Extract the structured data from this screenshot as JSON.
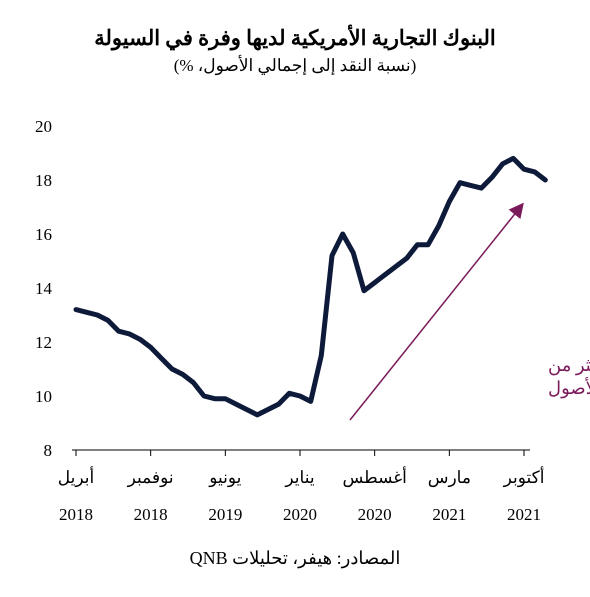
{
  "title": "البنوك التجارية الأمريكية لديها وفرة في السيولة",
  "subtitle": "(نسبة النقد إلى إجمالي الأصول، %)",
  "source": "المصادر: هيفر، تحليلات QNB",
  "chart_data": {
    "type": "line",
    "title": "البنوك التجارية الأمريكية لديها وفرة في السيولة",
    "subtitle": "(نسبة النقد إلى إجمالي الأصول، %)",
    "ylim": [
      8,
      20
    ],
    "yticks": [
      8,
      10,
      12,
      14,
      16,
      18,
      20
    ],
    "xlim": [
      0,
      42
    ],
    "x_ticks": [
      {
        "x": 0,
        "month": "أبريل",
        "year": "2018"
      },
      {
        "x": 7,
        "month": "نوفمبر",
        "year": "2018"
      },
      {
        "x": 14,
        "month": "يونيو",
        "year": "2019"
      },
      {
        "x": 21,
        "month": "يناير",
        "year": "2020"
      },
      {
        "x": 28,
        "month": "أغسطس",
        "year": "2020"
      },
      {
        "x": 35,
        "month": "مارس",
        "year": "2021"
      },
      {
        "x": 42,
        "month": "أكتوبر",
        "year": "2021"
      }
    ],
    "series": [
      {
        "color": "#0d1a3a",
        "x": [
          0,
          1,
          2,
          3,
          4,
          5,
          6,
          7,
          8,
          9,
          10,
          11,
          12,
          13,
          14,
          15,
          16,
          17,
          18,
          19,
          20,
          21,
          22,
          23,
          24,
          25,
          26,
          27,
          28,
          29,
          30,
          31,
          32,
          33,
          34,
          35,
          36,
          37,
          38,
          39,
          40,
          41,
          42,
          43,
          44
        ],
        "values": [
          13.2,
          13.1,
          13.0,
          12.8,
          12.4,
          12.3,
          12.1,
          11.8,
          11.4,
          11.0,
          10.8,
          10.5,
          10.0,
          9.9,
          9.9,
          9.7,
          9.5,
          9.3,
          9.5,
          9.7,
          10.1,
          10.0,
          9.8,
          11.5,
          15.2,
          16.0,
          15.3,
          13.9,
          14.2,
          14.5,
          14.8,
          15.1,
          15.6,
          15.6,
          16.3,
          17.2,
          17.9,
          17.8,
          17.7,
          18.1,
          18.6,
          18.8,
          18.4,
          18.3,
          18.0
        ]
      }
    ],
    "annotation": {
      "line1": "زيادة النقد أكثر من",
      "line2": "الأصول",
      "color": "#7b1a5a"
    },
    "grid": false
  }
}
